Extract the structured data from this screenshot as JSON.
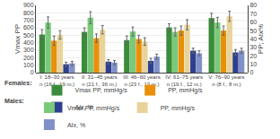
{
  "chart_data": {
    "type": "bar",
    "categories": [
      "I: 18–30 years\nn (16 f., 19 m.)",
      "II: 31–45 years\nn (21 f., 36 m.)",
      "III: 46–60 years\nn (23 f., 13 m.)",
      "IV: 61–75 years\nn (19 f., 12 m.)",
      "V: 76–90 years\nn (8 f., 8 m.)"
    ],
    "series": [
      {
        "name": "Vmax PP, mmHg/s",
        "color": "#3a8c3a",
        "values": [
          510,
          545,
          435,
          605,
          730
        ],
        "errors": [
          65,
          55,
          55,
          50,
          65
        ]
      },
      {
        "name": "Vmax PP, mmHg/s",
        "color": "#7ac97a",
        "values": [
          670,
          735,
          550,
          545,
          670
        ],
        "errors": [
          75,
          80,
          60,
          55,
          70
        ]
      },
      {
        "name": "PP, mmHg/s",
        "color": "#e8900a",
        "values": [
          38,
          41,
          40,
          50,
          50
        ],
        "errors": [
          5.5,
          5.0,
          4.5,
          5.5,
          5.5
        ],
        "axis": "y2"
      },
      {
        "name": "PP, mmHg/s",
        "color": "#e8d49a",
        "values": [
          45,
          51,
          37,
          57,
          67
        ],
        "errors": [
          5.0,
          5.0,
          4.5,
          6.0,
          6.0
        ],
        "axis": "y2"
      },
      {
        "name": "AIx, %",
        "color": "#2e3f8f",
        "values": [
          10,
          13,
          14,
          26,
          24
        ],
        "errors": [
          2.5,
          2.5,
          3.0,
          3.0,
          3.5
        ],
        "axis": "y2"
      },
      {
        "name": "AIx, %",
        "color": "#8090c8",
        "values": [
          11,
          12,
          19,
          23,
          26
        ],
        "errors": [
          2.5,
          2.5,
          3.0,
          3.0,
          3.0
        ],
        "axis": "y2"
      }
    ],
    "ylabel": "Vmax PP",
    "y2label": "PP; AIx%",
    "ylim": [
      0,
      900
    ],
    "yticks": [
      0,
      100,
      200,
      300,
      400,
      500,
      600,
      700,
      800,
      900
    ],
    "y2lim": [
      0,
      80
    ],
    "y2ticks": [
      0,
      10,
      20,
      30,
      40,
      50,
      60,
      70,
      80
    ],
    "grid": true,
    "annotations": [
      "Females:",
      "Males:"
    ]
  }
}
